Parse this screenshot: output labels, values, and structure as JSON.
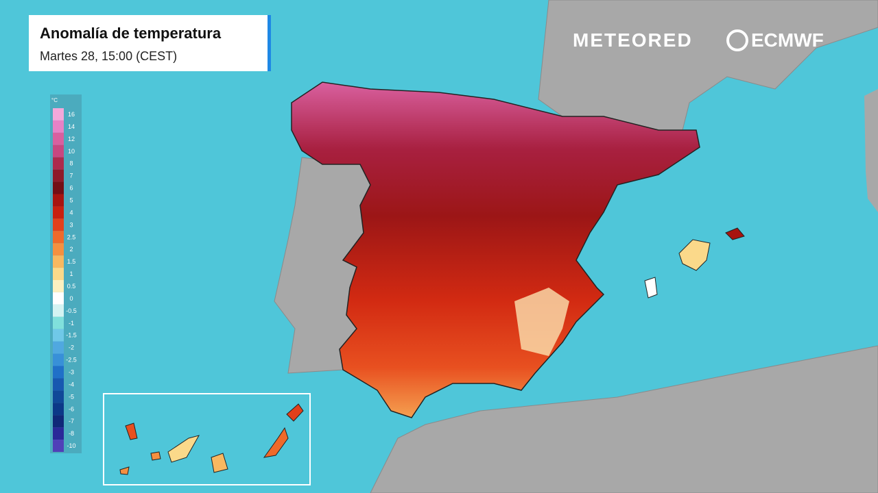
{
  "header": {
    "title": "Anomalía de temperatura",
    "subtitle": "Martes 28, 15:00 (CEST)"
  },
  "logos": {
    "brand": "METEORED",
    "partner": "ECMWF"
  },
  "legend": {
    "unit": "°C",
    "steps": [
      {
        "value": 16,
        "color": "#f3a8da"
      },
      {
        "value": 14,
        "color": "#e882c6"
      },
      {
        "value": 12,
        "color": "#d9609f"
      },
      {
        "value": 10,
        "color": "#c84780"
      },
      {
        "value": 8,
        "color": "#ad2a4c"
      },
      {
        "value": 7,
        "color": "#8e1a28"
      },
      {
        "value": 6,
        "color": "#740e14"
      },
      {
        "value": 5,
        "color": "#a8140f"
      },
      {
        "value": 4,
        "color": "#c8200f"
      },
      {
        "value": 3,
        "color": "#e2401a"
      },
      {
        "value": 2.5,
        "color": "#ef6a2a"
      },
      {
        "value": 2,
        "color": "#f59040"
      },
      {
        "value": 1.5,
        "color": "#f8b860"
      },
      {
        "value": 1,
        "color": "#fbd98a"
      },
      {
        "value": 0.5,
        "color": "#fdf0c0"
      },
      {
        "value": 0,
        "color": "#ffffff"
      },
      {
        "value": -0.5,
        "color": "#d4f3f2"
      },
      {
        "value": -1,
        "color": "#80e0dc"
      },
      {
        "value": -1.5,
        "color": "#70c8e8"
      },
      {
        "value": -2,
        "color": "#50a8e0"
      },
      {
        "value": -2.5,
        "color": "#3890d8"
      },
      {
        "value": -3,
        "color": "#2070c8"
      },
      {
        "value": -4,
        "color": "#1858b0"
      },
      {
        "value": -5,
        "color": "#104898"
      },
      {
        "value": -6,
        "color": "#0c3888"
      },
      {
        "value": -7,
        "color": "#102878"
      },
      {
        "value": -8,
        "color": "#2a2898"
      },
      {
        "value": -10,
        "color": "#5040b8"
      }
    ]
  }
}
